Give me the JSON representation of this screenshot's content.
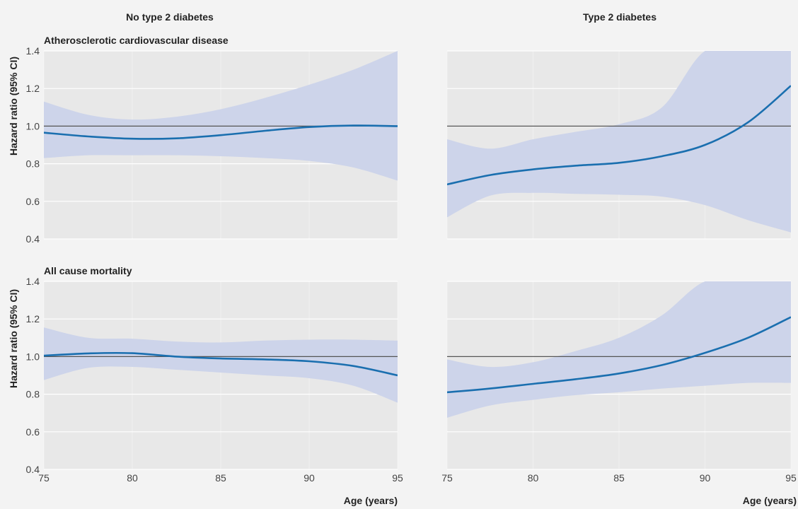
{
  "columns": [
    "No type 2 diabetes",
    "Type 2 diabetes"
  ],
  "rows": [
    "Atherosclerotic cardiovascular disease",
    "All cause mortality"
  ],
  "ylabel": "Hazard ratio (95% CI)",
  "xlabel": "Age (years)",
  "colors": {
    "line": "#1a6faf",
    "band": "#cdd4ea",
    "panel": "#e8e8e8",
    "background": "#f3f3f3",
    "reference": "#555555"
  },
  "chart_data": {
    "type": "line",
    "x_ticks": [
      75,
      80,
      85,
      90,
      95
    ],
    "x_tick_labels": [
      "75",
      "80",
      "85",
      "90",
      "95"
    ],
    "y_ticks": [
      0.4,
      0.6,
      0.8,
      1.0,
      1.2,
      1.4
    ],
    "y_tick_labels": [
      "0.4",
      "0.6",
      "0.8",
      "1.0",
      "1.2",
      "1.4"
    ],
    "xlim": [
      75,
      95
    ],
    "ylim": [
      0.4,
      1.4
    ],
    "reference_line": 1.0,
    "grid": true,
    "panels": [
      {
        "row": 0,
        "col": 0,
        "x": [
          75,
          77.5,
          80,
          82.5,
          85,
          87.5,
          90,
          92.5,
          95
        ],
        "y": [
          0.965,
          0.945,
          0.933,
          0.935,
          0.952,
          0.975,
          0.995,
          1.003,
          1.0
        ],
        "lower": [
          0.83,
          0.845,
          0.845,
          0.845,
          0.84,
          0.83,
          0.815,
          0.78,
          0.71
        ],
        "upper": [
          1.13,
          1.06,
          1.035,
          1.05,
          1.09,
          1.15,
          1.22,
          1.3,
          1.4
        ]
      },
      {
        "row": 0,
        "col": 1,
        "x": [
          75,
          77.5,
          80,
          82.5,
          85,
          87.5,
          90,
          92.5,
          95
        ],
        "y": [
          0.69,
          0.74,
          0.77,
          0.79,
          0.805,
          0.84,
          0.9,
          1.02,
          1.215
        ],
        "lower": [
          0.515,
          0.63,
          0.645,
          0.64,
          0.635,
          0.625,
          0.58,
          0.5,
          0.435
        ],
        "upper": [
          0.93,
          0.88,
          0.93,
          0.97,
          1.01,
          1.1,
          1.4,
          1.4,
          1.4
        ]
      },
      {
        "row": 1,
        "col": 0,
        "x": [
          75,
          77.5,
          80,
          82.5,
          85,
          87.5,
          90,
          92.5,
          95
        ],
        "y": [
          1.005,
          1.017,
          1.018,
          1.0,
          0.99,
          0.985,
          0.975,
          0.95,
          0.9
        ],
        "lower": [
          0.875,
          0.94,
          0.945,
          0.93,
          0.915,
          0.9,
          0.885,
          0.845,
          0.755
        ],
        "upper": [
          1.155,
          1.1,
          1.095,
          1.08,
          1.075,
          1.085,
          1.09,
          1.09,
          1.085
        ]
      },
      {
        "row": 1,
        "col": 1,
        "x": [
          75,
          77.5,
          80,
          82.5,
          85,
          87.5,
          90,
          92.5,
          95
        ],
        "y": [
          0.81,
          0.83,
          0.855,
          0.88,
          0.91,
          0.955,
          1.02,
          1.1,
          1.21
        ],
        "lower": [
          0.675,
          0.74,
          0.77,
          0.795,
          0.81,
          0.83,
          0.845,
          0.86,
          0.86
        ],
        "upper": [
          0.985,
          0.945,
          0.97,
          1.03,
          1.1,
          1.22,
          1.4,
          1.4,
          1.4
        ]
      }
    ]
  }
}
